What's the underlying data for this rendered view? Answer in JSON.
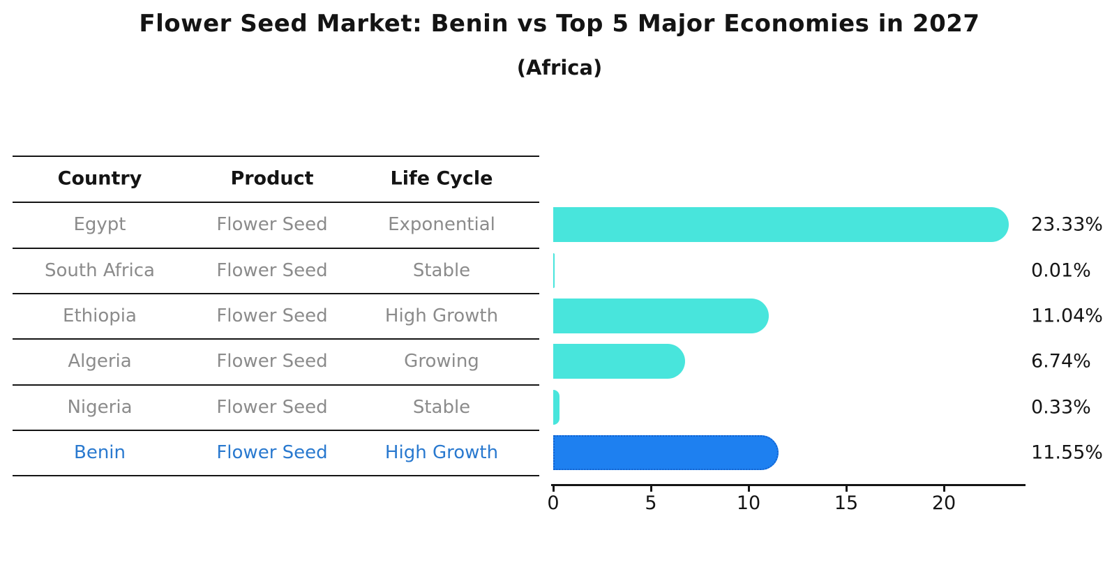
{
  "title": "Flower Seed Market: Benin vs Top 5 Major Economies in 2027",
  "subtitle": "(Africa)",
  "table": {
    "headers": [
      "Country",
      "Product",
      "Life Cycle"
    ],
    "rows": [
      {
        "country": "Egypt",
        "product": "Flower Seed",
        "life_cycle": "Exponential",
        "value_label": "23.33%",
        "highlight": false
      },
      {
        "country": "South Africa",
        "product": "Flower Seed",
        "life_cycle": "Stable",
        "value_label": "0.01%",
        "highlight": false
      },
      {
        "country": "Ethiopia",
        "product": "Flower Seed",
        "life_cycle": "High Growth",
        "value_label": "11.04%",
        "highlight": false
      },
      {
        "country": "Algeria",
        "product": "Flower Seed",
        "life_cycle": "Growing",
        "value_label": "6.74%",
        "highlight": false
      },
      {
        "country": "Nigeria",
        "product": "Flower Seed",
        "life_cycle": "Stable",
        "value_label": "0.33%",
        "highlight": false
      },
      {
        "country": "Benin",
        "product": "Flower Seed",
        "life_cycle": "High Growth",
        "value_label": "11.55%",
        "highlight": true
      }
    ]
  },
  "chart_data": {
    "type": "bar",
    "orientation": "horizontal",
    "title": "Flower Seed Market: Benin vs Top 5 Major Economies in 2027",
    "subtitle": "(Africa)",
    "categories": [
      "Egypt",
      "South Africa",
      "Ethiopia",
      "Algeria",
      "Nigeria",
      "Benin"
    ],
    "values": [
      23.33,
      0.01,
      11.04,
      6.74,
      0.33,
      11.55
    ],
    "value_labels": [
      "23.33%",
      "0.01%",
      "11.04%",
      "6.74%",
      "0.33%",
      "11.55%"
    ],
    "xlabel": "",
    "ylabel": "",
    "x_ticks": [
      0,
      5,
      10,
      15,
      20
    ],
    "xlim": [
      0,
      24.2
    ],
    "grid": false,
    "legend": false,
    "highlight_category": "Benin",
    "colors": {
      "bar_default": "#48E5DC",
      "bar_highlight": "#1E80F0",
      "bar_highlight_border": "#1261CE",
      "highlight_text": "#2979CF",
      "row_text": "#8B8B8B",
      "header_text": "#141414",
      "axis": "#141414"
    }
  }
}
